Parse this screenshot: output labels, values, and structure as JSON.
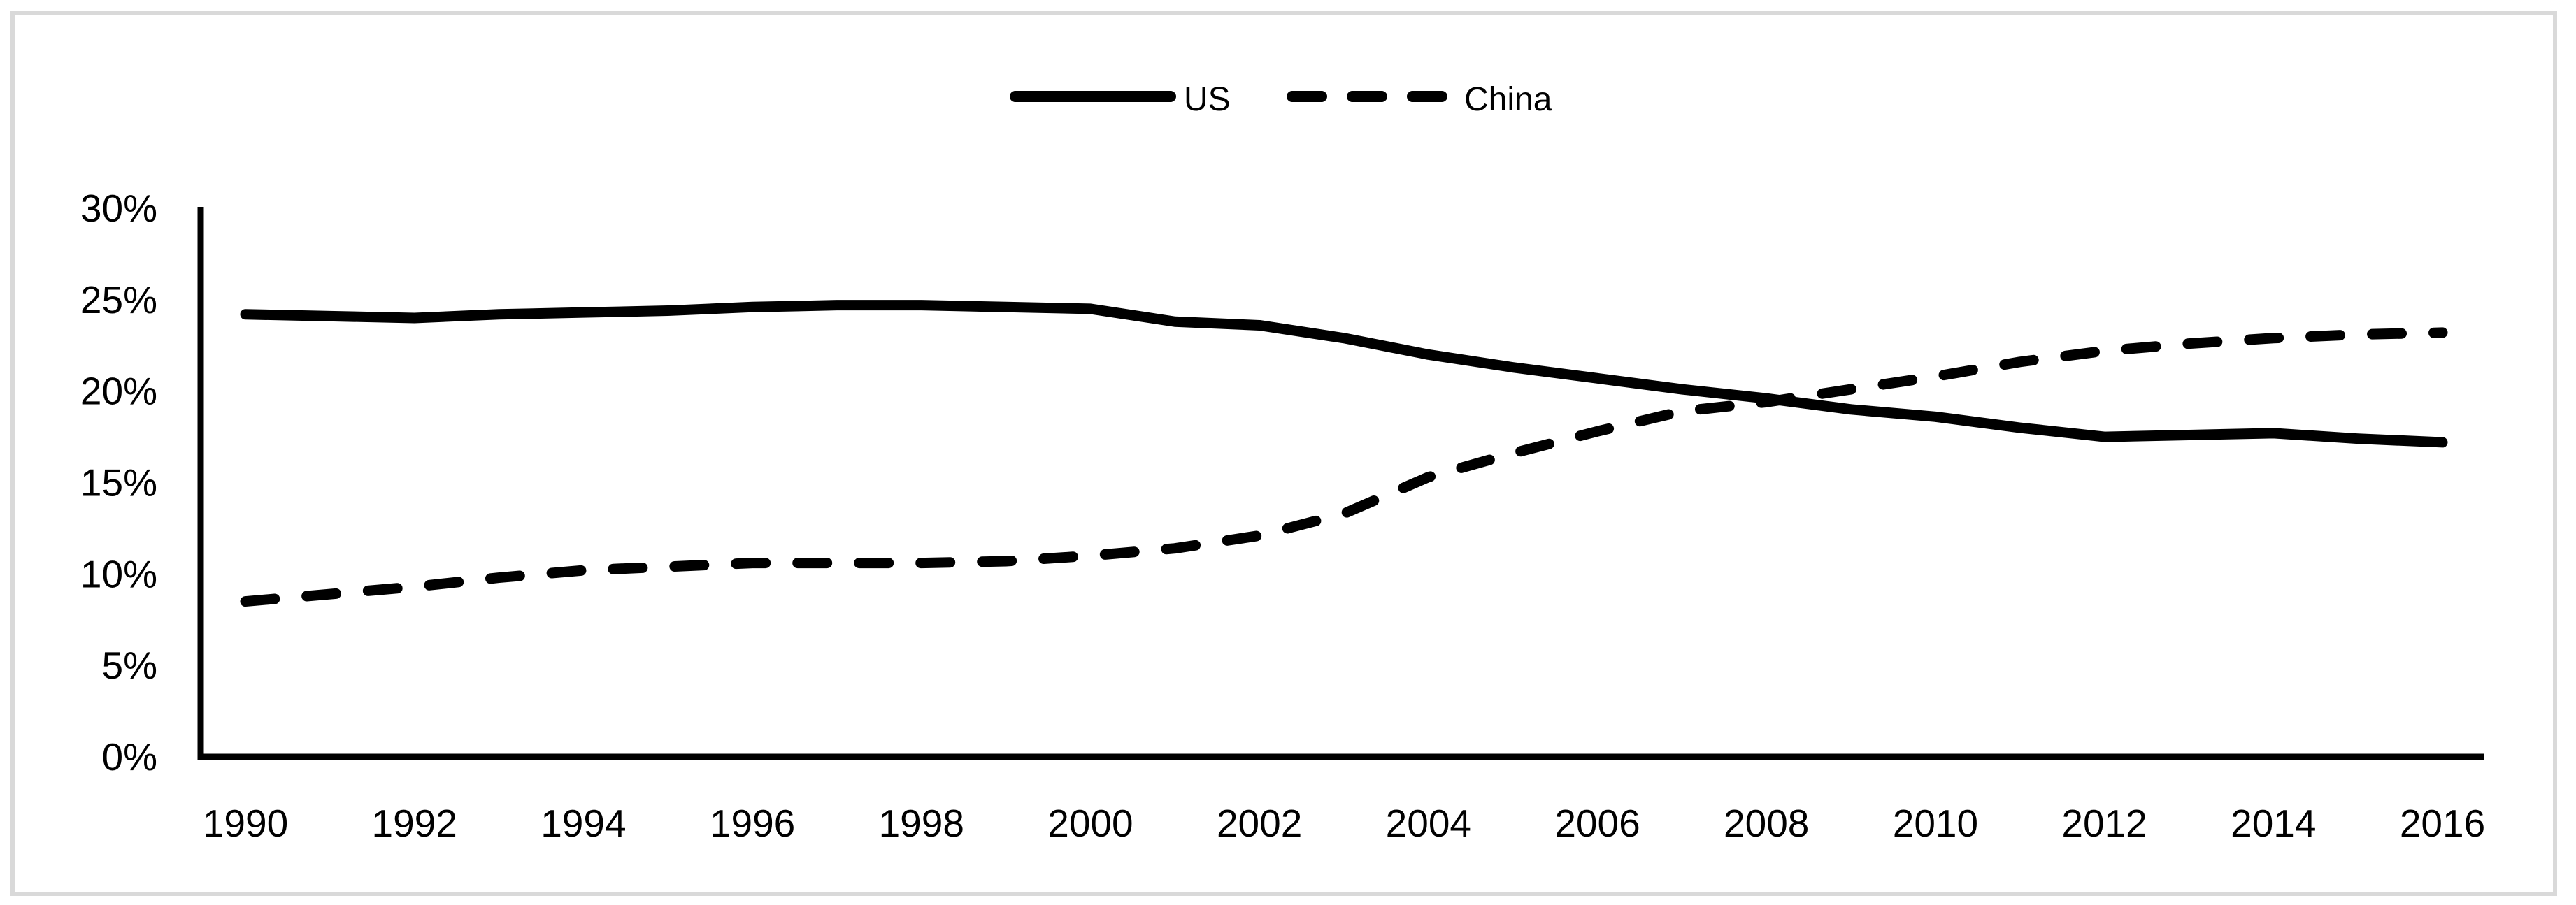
{
  "figure": {
    "background": "#ffffff",
    "border_color": "#d9d9d9",
    "line_color": "#000000"
  },
  "legend": {
    "items": [
      {
        "label": "US",
        "style": "solid"
      },
      {
        "label": "China",
        "style": "dashed"
      }
    ]
  },
  "chart_data": {
    "type": "line",
    "title": "",
    "xlabel": "",
    "ylabel": "",
    "grid": false,
    "legend_position": "top-center",
    "ylim": [
      0,
      30
    ],
    "yticks": [
      0,
      5,
      10,
      15,
      20,
      25,
      30
    ],
    "ytick_suffix": "%",
    "xticks": [
      1990,
      1992,
      1994,
      1996,
      1998,
      2000,
      2002,
      2004,
      2006,
      2008,
      2010,
      2012,
      2014,
      2016
    ],
    "x": [
      1990,
      1991,
      1992,
      1993,
      1994,
      1995,
      1996,
      1997,
      1998,
      1999,
      2000,
      2001,
      2002,
      2003,
      2004,
      2005,
      2006,
      2007,
      2008,
      2009,
      2010,
      2011,
      2012,
      2013,
      2014,
      2015,
      2016
    ],
    "series": [
      {
        "name": "US",
        "style": "solid",
        "values": [
          24.2,
          24.1,
          24.0,
          24.2,
          24.3,
          24.4,
          24.6,
          24.7,
          24.7,
          24.6,
          24.5,
          23.8,
          23.6,
          22.9,
          22.0,
          21.3,
          20.7,
          20.1,
          19.6,
          19.0,
          18.6,
          18.0,
          17.5,
          17.6,
          17.7,
          17.4,
          17.2
        ]
      },
      {
        "name": "China",
        "style": "dashed",
        "values": [
          8.5,
          8.9,
          9.3,
          9.8,
          10.2,
          10.4,
          10.6,
          10.6,
          10.6,
          10.7,
          11.0,
          11.4,
          12.1,
          13.3,
          15.3,
          16.6,
          17.8,
          18.9,
          19.4,
          20.1,
          20.8,
          21.6,
          22.2,
          22.6,
          22.9,
          23.1,
          23.2
        ]
      }
    ]
  }
}
